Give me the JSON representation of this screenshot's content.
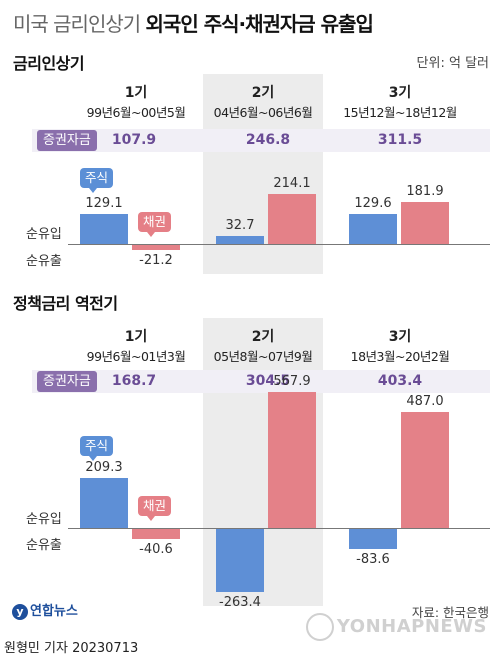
{
  "title": {
    "light": "미국 금리인상기",
    "bold": "외국인 주식·채권자금 유출입"
  },
  "unit": "단위: 억 달러",
  "row_labels": {
    "inflow": "순유입",
    "outflow": "순유출"
  },
  "fund_badge": "증권자금",
  "tags": {
    "stock": "주식",
    "bond": "채권"
  },
  "colors": {
    "stock": "#5e8fd6",
    "bond": "#e48188",
    "fund": "#8a6fac",
    "highlight": "#ececec"
  },
  "chart_data": [
    {
      "type": "bar",
      "title": "금리인상기",
      "series": [
        {
          "name": "주식",
          "values": [
            129.1,
            32.7,
            129.6
          ]
        },
        {
          "name": "채권",
          "values": [
            -21.2,
            214.1,
            181.9
          ]
        }
      ],
      "categories": [
        {
          "num": "1기",
          "range": "99년6월~00년5월",
          "fund": "107.9"
        },
        {
          "num": "2기",
          "range": "04년6월~06년6월",
          "fund": "246.8"
        },
        {
          "num": "3기",
          "range": "15년12월~18년12월",
          "fund": "311.5"
        }
      ],
      "highlighted_period": "2기"
    },
    {
      "type": "bar",
      "title": "정책금리 역전기",
      "series": [
        {
          "name": "주식",
          "values": [
            209.3,
            -263.4,
            -83.6
          ]
        },
        {
          "name": "채권",
          "values": [
            -40.6,
            567.9,
            487.0
          ]
        }
      ],
      "categories": [
        {
          "num": "1기",
          "range": "99년6월~01년3월",
          "fund": "168.7"
        },
        {
          "num": "2기",
          "range": "05년8월~07년9월",
          "fund": "304.5"
        },
        {
          "num": "3기",
          "range": "18년3월~20년2월",
          "fund": "403.4"
        }
      ],
      "highlighted_period": "2기"
    }
  ],
  "footer": {
    "logo": "연합뉴스",
    "source": "자료: 한국은행",
    "byline": "원형민 기자  20230713",
    "watermark": "YONHAPNEWS"
  }
}
